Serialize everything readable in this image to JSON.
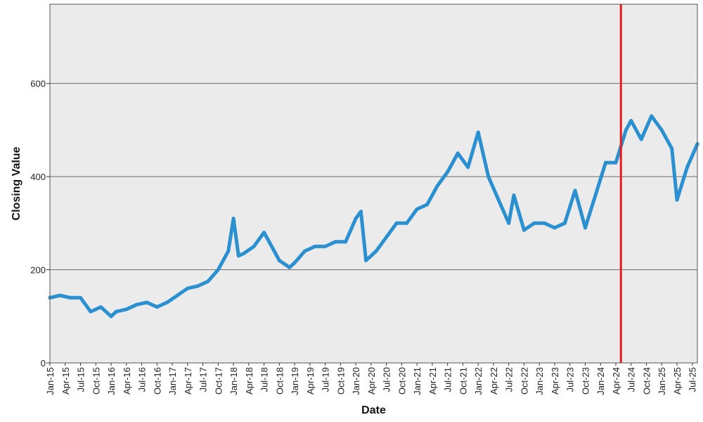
{
  "chart_data": {
    "type": "line",
    "title": "",
    "xlabel": "Date",
    "ylabel": "Closing Value",
    "ylim": [
      0,
      770
    ],
    "xlim": [
      "2015-01",
      "2025-08"
    ],
    "yticks": [
      0,
      200,
      400,
      600
    ],
    "xtick_labels": [
      "Jan-15",
      "Apr-15",
      "Jul-15",
      "Oct-15",
      "Jan-16",
      "Apr-16",
      "Jul-16",
      "Oct-16",
      "Jan-17",
      "Apr-17",
      "Jul-17",
      "Oct-17",
      "Jan-18",
      "Apr-18",
      "Jul-18",
      "Oct-18",
      "Jan-19",
      "Apr-19",
      "Jul-19",
      "Oct-19",
      "Jan-20",
      "Apr-20",
      "Jul-20",
      "Oct-20",
      "Jan-21",
      "Apr-21",
      "Jul-21",
      "Oct-21",
      "Jan-22",
      "Apr-22",
      "Jul-22",
      "Oct-22",
      "Jan-23",
      "Apr-23",
      "Jul-23",
      "Oct-23",
      "Jan-24",
      "Apr-24",
      "Jul-24",
      "Oct-24",
      "Jan-25",
      "Apr-25",
      "Jul-25"
    ],
    "grid": "horizontal",
    "plot_background": "#ebebeb",
    "series": [
      {
        "color": "#2a90cf",
        "x": [
          "2015-01",
          "2015-03",
          "2015-05",
          "2015-07",
          "2015-09",
          "2015-11",
          "2016-01",
          "2016-02",
          "2016-04",
          "2016-06",
          "2016-08",
          "2016-10",
          "2016-12",
          "2017-02",
          "2017-04",
          "2017-06",
          "2017-08",
          "2017-10",
          "2017-12",
          "2018-01",
          "2018-02",
          "2018-03",
          "2018-05",
          "2018-07",
          "2018-09",
          "2018-10",
          "2018-12",
          "2019-01",
          "2019-03",
          "2019-05",
          "2019-07",
          "2019-09",
          "2019-11",
          "2020-01",
          "2020-02",
          "2020-03",
          "2020-05",
          "2020-07",
          "2020-09",
          "2020-11",
          "2021-01",
          "2021-03",
          "2021-05",
          "2021-07",
          "2021-09",
          "2021-11",
          "2022-01",
          "2022-03",
          "2022-05",
          "2022-07",
          "2022-08",
          "2022-10",
          "2022-12",
          "2023-02",
          "2023-04",
          "2023-06",
          "2023-08",
          "2023-10",
          "2023-12",
          "2024-02",
          "2024-04",
          "2024-06",
          "2024-07",
          "2024-09",
          "2024-11",
          "2025-01",
          "2025-03",
          "2025-04",
          "2025-06",
          "2025-08"
        ],
        "y": [
          140,
          145,
          140,
          140,
          110,
          120,
          100,
          110,
          115,
          125,
          130,
          120,
          130,
          145,
          160,
          165,
          175,
          200,
          240,
          310,
          230,
          235,
          250,
          280,
          240,
          220,
          205,
          215,
          240,
          250,
          250,
          260,
          260,
          310,
          325,
          220,
          240,
          270,
          300,
          300,
          330,
          340,
          380,
          410,
          450,
          420,
          495,
          400,
          350,
          300,
          360,
          285,
          300,
          300,
          290,
          300,
          370,
          290,
          360,
          430,
          430,
          500,
          520,
          480,
          530,
          500,
          460,
          350,
          420,
          470
        ]
      }
    ],
    "annotations": [
      {
        "type": "vline",
        "x": "2024-05",
        "color": "#e8191f"
      }
    ]
  }
}
